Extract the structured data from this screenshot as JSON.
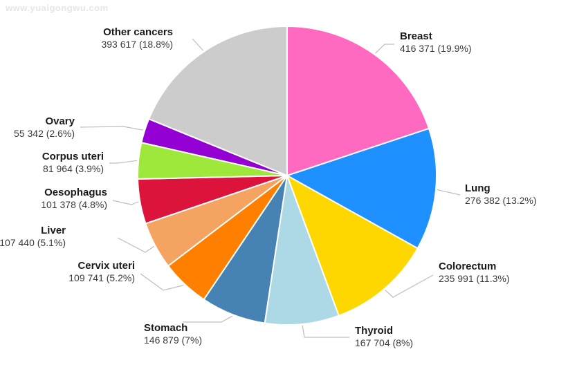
{
  "watermark": "www.yuaigongwu.com",
  "chart_data": {
    "type": "pie",
    "start_angle_deg": 0,
    "direction": "clockwise",
    "slices": [
      {
        "label": "Breast",
        "value": 416371,
        "value_text": "416 371 (19.9%)",
        "percent": 19.9,
        "color": "#ff69c0"
      },
      {
        "label": "Lung",
        "value": 276382,
        "value_text": "276 382 (13.2%)",
        "percent": 13.2,
        "color": "#1e90ff"
      },
      {
        "label": "Colorectum",
        "value": 235991,
        "value_text": "235 991 (11.3%)",
        "percent": 11.3,
        "color": "#ffd700"
      },
      {
        "label": "Thyroid",
        "value": 167704,
        "value_text": "167 704 (8%)",
        "percent": 8.0,
        "color": "#add8e6"
      },
      {
        "label": "Stomach",
        "value": 146879,
        "value_text": "146 879 (7%)",
        "percent": 7.0,
        "color": "#4682b4"
      },
      {
        "label": "Cervix uteri",
        "value": 109741,
        "value_text": "109 741 (5.2%)",
        "percent": 5.2,
        "color": "#ff7f00"
      },
      {
        "label": "Liver",
        "value": 107440,
        "value_text": "107 440 (5.1%)",
        "percent": 5.1,
        "color": "#f4a460"
      },
      {
        "label": "Oesophagus",
        "value": 101378,
        "value_text": "101 378 (4.8%)",
        "percent": 4.8,
        "color": "#dc143c"
      },
      {
        "label": "Corpus uteri",
        "value": 81964,
        "value_text": "81 964 (3.9%)",
        "percent": 3.9,
        "color": "#9de83a"
      },
      {
        "label": "Ovary",
        "value": 55342,
        "value_text": "55 342 (2.6%)",
        "percent": 2.6,
        "color": "#9400d3"
      },
      {
        "label": "Other cancers",
        "value": 393617,
        "value_text": "393 617 (18.8%)",
        "percent": 18.8,
        "color": "#cccccc"
      }
    ]
  }
}
